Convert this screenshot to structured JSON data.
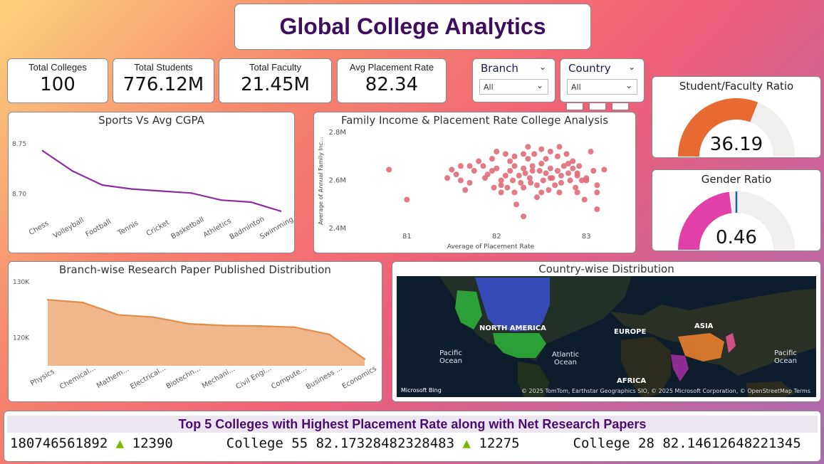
{
  "title": "Global College Analytics",
  "kpis": [
    {
      "label": "Total Colleges",
      "value": "100"
    },
    {
      "label": "Total Students",
      "value": "776.12M"
    },
    {
      "label": "Total Faculty",
      "value": "21.45M"
    },
    {
      "label": "Avg Placement Rate",
      "value": "82.34"
    }
  ],
  "slicers": [
    {
      "label": "Branch",
      "value": "All"
    },
    {
      "label": "Country",
      "value": "All"
    }
  ],
  "gauges": {
    "student_faculty": {
      "title": "Student/Faculty Ratio",
      "value": "36.19",
      "fraction": 0.62,
      "color": "#e86a33"
    },
    "gender": {
      "title": "Gender Ratio",
      "value": "0.46",
      "fraction": 0.46,
      "target": 0.5,
      "color": "#e040a8"
    }
  },
  "map": {
    "title": "Country-wise Distribution",
    "labels": [
      "NORTH AMERICA",
      "EUROPE",
      "ASIA",
      "AFRICA"
    ],
    "oceans": [
      "Pacific\nOcean",
      "Atlantic\nOcean",
      "Pacific\nOcean"
    ],
    "logo": "Microsoft Bing",
    "credit": "© 2025 TomTom, Earthstar Geographics SIO, © 2025 Microsoft Corporation, © OpenStreetMap Terms"
  },
  "ticker": {
    "title": "Top 5 Colleges with Highest Placement Rate along with Net Research Papers",
    "items": [
      {
        "text": "180746561892",
        "arrow": "▲",
        "papers": "12390"
      },
      {
        "text": "College 55 82.17328482328483",
        "arrow": "▲",
        "papers": "12275"
      },
      {
        "text": "College 28 82.14612648221345",
        "arrow": "",
        "papers": ""
      }
    ]
  },
  "chart_data": [
    {
      "type": "line",
      "title": "Sports Vs Avg CGPA",
      "categories": [
        "Chess",
        "Volleyball",
        "Football",
        "Tennis",
        "Cricket",
        "Basketball",
        "Athletics",
        "Badminton",
        "Swimming"
      ],
      "values": [
        8.743,
        8.723,
        8.709,
        8.705,
        8.703,
        8.701,
        8.694,
        8.692,
        8.683
      ],
      "yticks": [
        "8.75",
        "8.70"
      ],
      "ylim": [
        8.675,
        8.76
      ],
      "color": "#8b2f9e"
    },
    {
      "type": "scatter",
      "title": "Family Income & Placement Rate College Analysis",
      "xlabel": "Average of Placement Rate",
      "ylabel": "Average of Annual Family Inc...",
      "xticks": [
        "81",
        "82",
        "83"
      ],
      "yticks": [
        "2.8M",
        "2.6M",
        "2.4M"
      ],
      "xlim": [
        80.6,
        83.3
      ],
      "ylim": [
        2.4,
        2.8
      ],
      "color": "#e06c7a",
      "points": [
        [
          80.8,
          2.645
        ],
        [
          81.0,
          2.52
        ],
        [
          81.5,
          2.645
        ],
        [
          81.55,
          2.625
        ],
        [
          81.6,
          2.66
        ],
        [
          81.65,
          2.56
        ],
        [
          81.7,
          2.59
        ],
        [
          81.75,
          2.64
        ],
        [
          81.8,
          2.68
        ],
        [
          81.85,
          2.66
        ],
        [
          81.87,
          2.61
        ],
        [
          81.9,
          2.625
        ],
        [
          81.95,
          2.69
        ],
        [
          81.97,
          2.57
        ],
        [
          82.0,
          2.72
        ],
        [
          82.0,
          2.65
        ],
        [
          82.05,
          2.6
        ],
        [
          82.05,
          2.55
        ],
        [
          82.1,
          2.71
        ],
        [
          82.1,
          2.62
        ],
        [
          82.12,
          2.57
        ],
        [
          82.15,
          2.64
        ],
        [
          82.18,
          2.6
        ],
        [
          82.2,
          2.7
        ],
        [
          82.2,
          2.66
        ],
        [
          82.2,
          2.55
        ],
        [
          82.22,
          2.5
        ],
        [
          82.25,
          2.62
        ],
        [
          82.27,
          2.59
        ],
        [
          82.3,
          2.71
        ],
        [
          82.3,
          2.65
        ],
        [
          82.3,
          2.57
        ],
        [
          82.32,
          2.63
        ],
        [
          82.35,
          2.74
        ],
        [
          82.35,
          2.69
        ],
        [
          82.37,
          2.61
        ],
        [
          82.4,
          2.66
        ],
        [
          82.4,
          2.64
        ],
        [
          82.42,
          2.71
        ],
        [
          82.45,
          2.58
        ],
        [
          82.45,
          2.53
        ],
        [
          82.48,
          2.64
        ],
        [
          82.5,
          2.73
        ],
        [
          82.5,
          2.67
        ],
        [
          82.52,
          2.6
        ],
        [
          82.55,
          2.63
        ],
        [
          82.55,
          2.69
        ],
        [
          82.58,
          2.56
        ],
        [
          82.6,
          2.65
        ],
        [
          82.6,
          2.72
        ],
        [
          82.62,
          2.61
        ],
        [
          82.65,
          2.58
        ],
        [
          82.68,
          2.7
        ],
        [
          82.68,
          2.64
        ],
        [
          82.7,
          2.55
        ],
        [
          82.72,
          2.62
        ],
        [
          82.72,
          2.59
        ],
        [
          82.75,
          2.66
        ],
        [
          82.78,
          2.71
        ],
        [
          82.8,
          2.63
        ],
        [
          82.82,
          2.6
        ],
        [
          82.85,
          2.68
        ],
        [
          82.85,
          2.65
        ],
        [
          82.88,
          2.57
        ],
        [
          82.9,
          2.62
        ],
        [
          82.92,
          2.66
        ],
        [
          82.95,
          2.6
        ],
        [
          82.98,
          2.52
        ],
        [
          83.0,
          2.61
        ],
        [
          83.05,
          2.72
        ],
        [
          83.08,
          2.64
        ],
        [
          83.12,
          2.58
        ],
        [
          83.12,
          2.55
        ],
        [
          83.12,
          2.48
        ],
        [
          81.45,
          2.61
        ],
        [
          81.6,
          2.6
        ],
        [
          81.7,
          2.66
        ],
        [
          82.05,
          2.58
        ],
        [
          82.3,
          2.45
        ],
        [
          82.9,
          2.55
        ],
        [
          83.2,
          2.645
        ],
        [
          82.8,
          2.67
        ],
        [
          82.6,
          2.61
        ],
        [
          81.95,
          2.64
        ],
        [
          82.15,
          2.68
        ],
        [
          82.38,
          2.59
        ],
        [
          82.9,
          2.63
        ],
        [
          83.0,
          2.6
        ],
        [
          82.5,
          2.55
        ],
        [
          82.7,
          2.74
        ]
      ]
    },
    {
      "type": "area",
      "title": "Branch-wise Research Paper Published Distribution",
      "categories": [
        "Physics",
        "Chemical...",
        "Mathem...",
        "Electrical...",
        "Biotechn...",
        "Mechani...",
        "Civil Engi...",
        "Compute...",
        "Business ...",
        "Economics"
      ],
      "values": [
        126800,
        126300,
        124100,
        123700,
        122500,
        122200,
        122100,
        121900,
        120600,
        116200
      ],
      "yticks": [
        "130K",
        "120K"
      ],
      "ylim": [
        115000,
        130000
      ],
      "color": "#e8995a"
    }
  ]
}
